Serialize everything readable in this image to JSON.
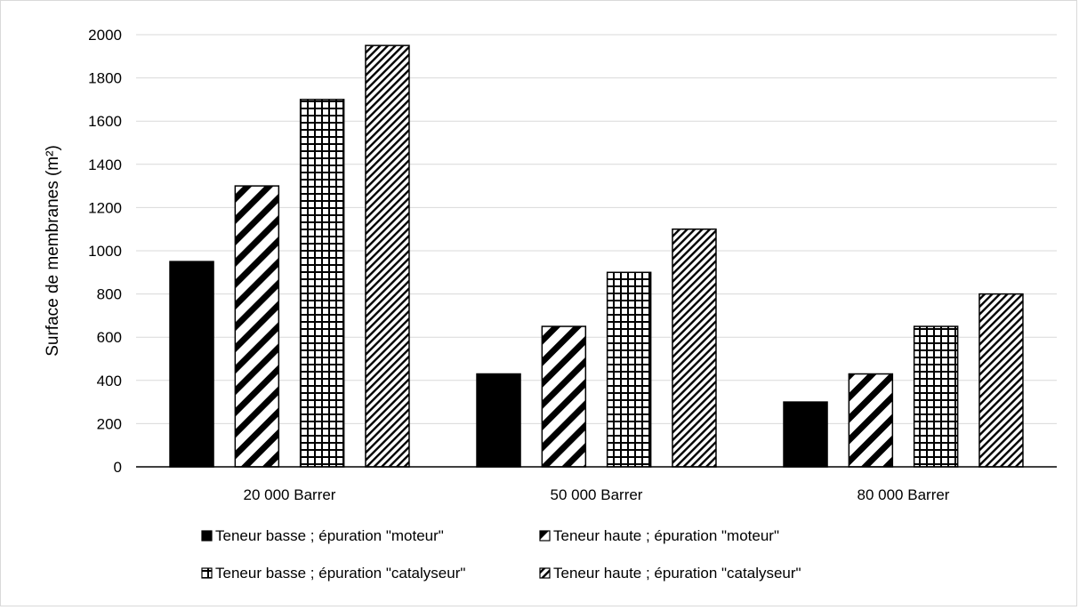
{
  "chart_data": {
    "type": "bar",
    "title": "",
    "xlabel": "",
    "ylabel": "Surface de membranes (m²)",
    "ylim": [
      0,
      2000
    ],
    "ytick_step": 200,
    "grid": true,
    "legend_position": "bottom",
    "categories": [
      "20 000 Barrer",
      "50 000 Barrer",
      "80 000 Barrer"
    ],
    "series": [
      {
        "name": "Teneur basse ; épuration \"moteur\"",
        "pattern": "solid",
        "values": [
          950,
          430,
          300
        ]
      },
      {
        "name": "Teneur haute ; épuration \"moteur\"",
        "pattern": "wide-diagonal",
        "values": [
          1300,
          650,
          430
        ]
      },
      {
        "name": "Teneur basse ; épuration \"catalyseur\"",
        "pattern": "grid",
        "values": [
          1700,
          900,
          650
        ]
      },
      {
        "name": "Teneur haute ; épuration \"catalyseur\"",
        "pattern": "fine-diagonal",
        "values": [
          1950,
          1100,
          800
        ]
      }
    ],
    "colors": {
      "bar": "#000000",
      "grid": "#d9d9d9",
      "axis": "#000000"
    }
  }
}
